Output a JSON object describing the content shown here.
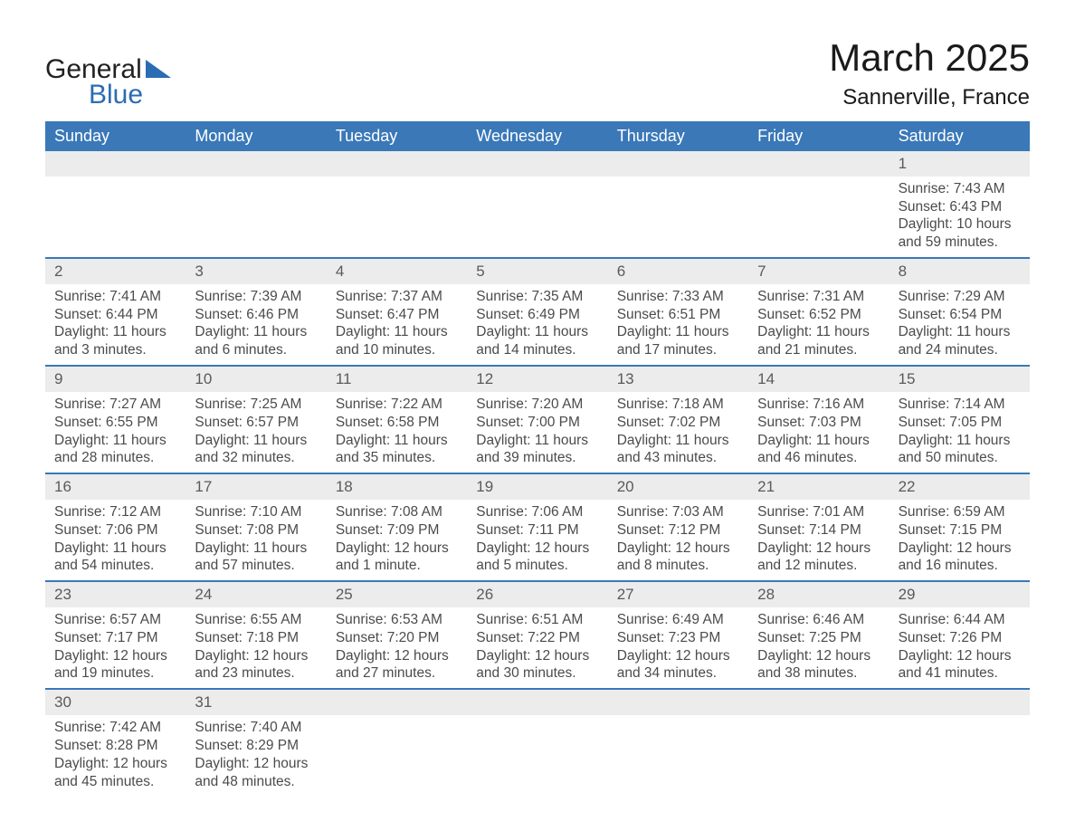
{
  "brand": {
    "text_general": "General",
    "text_blue": "Blue",
    "logo_color": "#2a6db3",
    "text_color_dark": "#222222"
  },
  "title": {
    "month": "March 2025",
    "location": "Sannerville, France"
  },
  "colors": {
    "header_bg": "#3a78b8",
    "header_text": "#ffffff",
    "daynum_bg": "#ececec",
    "border": "#3a78b8",
    "body_text": "#4b4b4b",
    "page_bg": "#ffffff"
  },
  "weekdays": [
    "Sunday",
    "Monday",
    "Tuesday",
    "Wednesday",
    "Thursday",
    "Friday",
    "Saturday"
  ],
  "weeks": [
    {
      "nums": [
        "",
        "",
        "",
        "",
        "",
        "",
        "1"
      ],
      "sunrise": [
        "",
        "",
        "",
        "",
        "",
        "",
        "Sunrise: 7:43 AM"
      ],
      "sunset": [
        "",
        "",
        "",
        "",
        "",
        "",
        "Sunset: 6:43 PM"
      ],
      "dl1": [
        "",
        "",
        "",
        "",
        "",
        "",
        "Daylight: 10 hours"
      ],
      "dl2": [
        "",
        "",
        "",
        "",
        "",
        "",
        "and 59 minutes."
      ]
    },
    {
      "nums": [
        "2",
        "3",
        "4",
        "5",
        "6",
        "7",
        "8"
      ],
      "sunrise": [
        "Sunrise: 7:41 AM",
        "Sunrise: 7:39 AM",
        "Sunrise: 7:37 AM",
        "Sunrise: 7:35 AM",
        "Sunrise: 7:33 AM",
        "Sunrise: 7:31 AM",
        "Sunrise: 7:29 AM"
      ],
      "sunset": [
        "Sunset: 6:44 PM",
        "Sunset: 6:46 PM",
        "Sunset: 6:47 PM",
        "Sunset: 6:49 PM",
        "Sunset: 6:51 PM",
        "Sunset: 6:52 PM",
        "Sunset: 6:54 PM"
      ],
      "dl1": [
        "Daylight: 11 hours",
        "Daylight: 11 hours",
        "Daylight: 11 hours",
        "Daylight: 11 hours",
        "Daylight: 11 hours",
        "Daylight: 11 hours",
        "Daylight: 11 hours"
      ],
      "dl2": [
        "and 3 minutes.",
        "and 6 minutes.",
        "and 10 minutes.",
        "and 14 minutes.",
        "and 17 minutes.",
        "and 21 minutes.",
        "and 24 minutes."
      ]
    },
    {
      "nums": [
        "9",
        "10",
        "11",
        "12",
        "13",
        "14",
        "15"
      ],
      "sunrise": [
        "Sunrise: 7:27 AM",
        "Sunrise: 7:25 AM",
        "Sunrise: 7:22 AM",
        "Sunrise: 7:20 AM",
        "Sunrise: 7:18 AM",
        "Sunrise: 7:16 AM",
        "Sunrise: 7:14 AM"
      ],
      "sunset": [
        "Sunset: 6:55 PM",
        "Sunset: 6:57 PM",
        "Sunset: 6:58 PM",
        "Sunset: 7:00 PM",
        "Sunset: 7:02 PM",
        "Sunset: 7:03 PM",
        "Sunset: 7:05 PM"
      ],
      "dl1": [
        "Daylight: 11 hours",
        "Daylight: 11 hours",
        "Daylight: 11 hours",
        "Daylight: 11 hours",
        "Daylight: 11 hours",
        "Daylight: 11 hours",
        "Daylight: 11 hours"
      ],
      "dl2": [
        "and 28 minutes.",
        "and 32 minutes.",
        "and 35 minutes.",
        "and 39 minutes.",
        "and 43 minutes.",
        "and 46 minutes.",
        "and 50 minutes."
      ]
    },
    {
      "nums": [
        "16",
        "17",
        "18",
        "19",
        "20",
        "21",
        "22"
      ],
      "sunrise": [
        "Sunrise: 7:12 AM",
        "Sunrise: 7:10 AM",
        "Sunrise: 7:08 AM",
        "Sunrise: 7:06 AM",
        "Sunrise: 7:03 AM",
        "Sunrise: 7:01 AM",
        "Sunrise: 6:59 AM"
      ],
      "sunset": [
        "Sunset: 7:06 PM",
        "Sunset: 7:08 PM",
        "Sunset: 7:09 PM",
        "Sunset: 7:11 PM",
        "Sunset: 7:12 PM",
        "Sunset: 7:14 PM",
        "Sunset: 7:15 PM"
      ],
      "dl1": [
        "Daylight: 11 hours",
        "Daylight: 11 hours",
        "Daylight: 12 hours",
        "Daylight: 12 hours",
        "Daylight: 12 hours",
        "Daylight: 12 hours",
        "Daylight: 12 hours"
      ],
      "dl2": [
        "and 54 minutes.",
        "and 57 minutes.",
        "and 1 minute.",
        "and 5 minutes.",
        "and 8 minutes.",
        "and 12 minutes.",
        "and 16 minutes."
      ]
    },
    {
      "nums": [
        "23",
        "24",
        "25",
        "26",
        "27",
        "28",
        "29"
      ],
      "sunrise": [
        "Sunrise: 6:57 AM",
        "Sunrise: 6:55 AM",
        "Sunrise: 6:53 AM",
        "Sunrise: 6:51 AM",
        "Sunrise: 6:49 AM",
        "Sunrise: 6:46 AM",
        "Sunrise: 6:44 AM"
      ],
      "sunset": [
        "Sunset: 7:17 PM",
        "Sunset: 7:18 PM",
        "Sunset: 7:20 PM",
        "Sunset: 7:22 PM",
        "Sunset: 7:23 PM",
        "Sunset: 7:25 PM",
        "Sunset: 7:26 PM"
      ],
      "dl1": [
        "Daylight: 12 hours",
        "Daylight: 12 hours",
        "Daylight: 12 hours",
        "Daylight: 12 hours",
        "Daylight: 12 hours",
        "Daylight: 12 hours",
        "Daylight: 12 hours"
      ],
      "dl2": [
        "and 19 minutes.",
        "and 23 minutes.",
        "and 27 minutes.",
        "and 30 minutes.",
        "and 34 minutes.",
        "and 38 minutes.",
        "and 41 minutes."
      ]
    },
    {
      "nums": [
        "30",
        "31",
        "",
        "",
        "",
        "",
        ""
      ],
      "sunrise": [
        "Sunrise: 7:42 AM",
        "Sunrise: 7:40 AM",
        "",
        "",
        "",
        "",
        ""
      ],
      "sunset": [
        "Sunset: 8:28 PM",
        "Sunset: 8:29 PM",
        "",
        "",
        "",
        "",
        ""
      ],
      "dl1": [
        "Daylight: 12 hours",
        "Daylight: 12 hours",
        "",
        "",
        "",
        "",
        ""
      ],
      "dl2": [
        "and 45 minutes.",
        "and 48 minutes.",
        "",
        "",
        "",
        "",
        ""
      ]
    }
  ]
}
